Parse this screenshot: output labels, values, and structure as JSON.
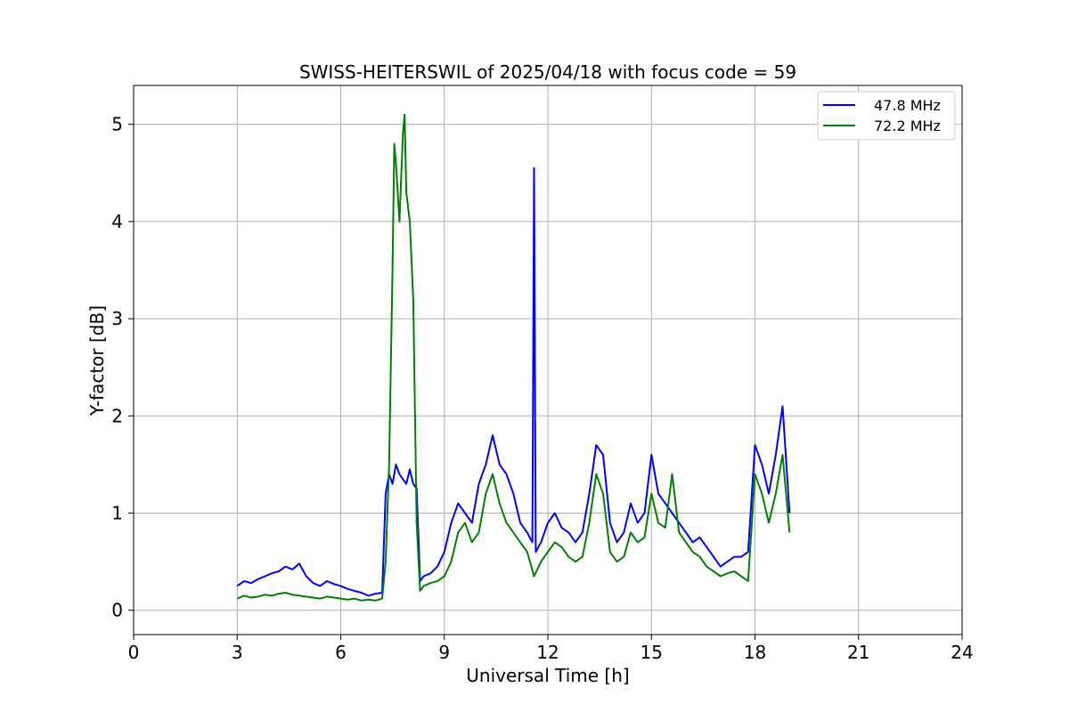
{
  "chart_data": {
    "type": "line",
    "title": "SWISS-HEITERSWIL of 2025/04/18 with focus code = 59",
    "xlabel": "Universal Time [h]",
    "ylabel": "Y-factor [dB]",
    "xlim": [
      0,
      24
    ],
    "ylim": [
      -0.25,
      5.4
    ],
    "xticks": [
      0,
      3,
      6,
      9,
      12,
      15,
      18,
      21,
      24
    ],
    "yticks": [
      0,
      1,
      2,
      3,
      4,
      5
    ],
    "grid": true,
    "legend_position": "top-right",
    "series": [
      {
        "name": "47.8 MHz",
        "color": "#0000ff",
        "x": [
          3.0,
          3.2,
          3.4,
          3.6,
          3.8,
          4.0,
          4.2,
          4.4,
          4.6,
          4.8,
          5.0,
          5.2,
          5.4,
          5.6,
          5.8,
          6.0,
          6.2,
          6.4,
          6.6,
          6.8,
          7.0,
          7.2,
          7.3,
          7.4,
          7.5,
          7.6,
          7.7,
          7.8,
          7.9,
          8.0,
          8.1,
          8.2,
          8.3,
          8.4,
          8.6,
          8.8,
          9.0,
          9.2,
          9.4,
          9.6,
          9.8,
          10.0,
          10.2,
          10.4,
          10.6,
          10.8,
          11.0,
          11.2,
          11.4,
          11.55,
          11.6,
          11.65,
          11.8,
          12.0,
          12.2,
          12.4,
          12.6,
          12.8,
          13.0,
          13.2,
          13.4,
          13.6,
          13.8,
          14.0,
          14.2,
          14.4,
          14.6,
          14.8,
          15.0,
          15.2,
          15.4,
          15.6,
          15.8,
          16.0,
          16.2,
          16.4,
          16.6,
          16.8,
          17.0,
          17.2,
          17.4,
          17.6,
          17.8,
          18.0,
          18.2,
          18.4,
          18.6,
          18.8,
          19.0
        ],
        "values": [
          0.25,
          0.3,
          0.28,
          0.32,
          0.35,
          0.38,
          0.4,
          0.45,
          0.42,
          0.48,
          0.35,
          0.28,
          0.25,
          0.3,
          0.27,
          0.25,
          0.22,
          0.2,
          0.18,
          0.15,
          0.17,
          0.18,
          1.2,
          1.4,
          1.3,
          1.5,
          1.4,
          1.35,
          1.3,
          1.45,
          1.3,
          1.25,
          0.3,
          0.35,
          0.38,
          0.45,
          0.6,
          0.9,
          1.1,
          1.0,
          0.9,
          1.3,
          1.5,
          1.8,
          1.5,
          1.4,
          1.2,
          0.9,
          0.8,
          0.7,
          4.55,
          0.6,
          0.7,
          0.9,
          1.0,
          0.85,
          0.8,
          0.7,
          0.8,
          1.2,
          1.7,
          1.6,
          0.9,
          0.7,
          0.8,
          1.1,
          0.9,
          1.0,
          1.6,
          1.2,
          1.1,
          1.0,
          0.9,
          0.8,
          0.7,
          0.75,
          0.65,
          0.55,
          0.45,
          0.5,
          0.55,
          0.55,
          0.6,
          1.7,
          1.5,
          1.2,
          1.6,
          2.1,
          1.0
        ]
      },
      {
        "name": "72.2 MHz",
        "color": "#008000",
        "x": [
          3.0,
          3.2,
          3.4,
          3.6,
          3.8,
          4.0,
          4.2,
          4.4,
          4.6,
          4.8,
          5.0,
          5.2,
          5.4,
          5.6,
          5.8,
          6.0,
          6.2,
          6.4,
          6.6,
          6.8,
          7.0,
          7.2,
          7.3,
          7.4,
          7.5,
          7.55,
          7.6,
          7.7,
          7.8,
          7.85,
          7.9,
          8.0,
          8.1,
          8.2,
          8.3,
          8.4,
          8.6,
          8.8,
          9.0,
          9.2,
          9.4,
          9.6,
          9.8,
          10.0,
          10.2,
          10.4,
          10.6,
          10.8,
          11.0,
          11.2,
          11.4,
          11.6,
          11.8,
          12.0,
          12.2,
          12.4,
          12.6,
          12.8,
          13.0,
          13.2,
          13.4,
          13.6,
          13.8,
          14.0,
          14.2,
          14.4,
          14.6,
          14.8,
          15.0,
          15.2,
          15.4,
          15.6,
          15.8,
          16.0,
          16.2,
          16.4,
          16.6,
          16.8,
          17.0,
          17.2,
          17.4,
          17.6,
          17.8,
          18.0,
          18.2,
          18.4,
          18.6,
          18.8,
          19.0
        ],
        "values": [
          0.12,
          0.15,
          0.13,
          0.14,
          0.16,
          0.15,
          0.17,
          0.18,
          0.16,
          0.15,
          0.14,
          0.13,
          0.12,
          0.14,
          0.13,
          0.12,
          0.11,
          0.12,
          0.1,
          0.11,
          0.1,
          0.12,
          0.5,
          1.5,
          3.5,
          4.8,
          4.6,
          4.0,
          4.9,
          5.1,
          4.3,
          4.0,
          3.2,
          0.9,
          0.2,
          0.25,
          0.28,
          0.3,
          0.35,
          0.5,
          0.8,
          0.9,
          0.7,
          0.8,
          1.2,
          1.4,
          1.1,
          0.9,
          0.8,
          0.7,
          0.6,
          0.35,
          0.5,
          0.6,
          0.7,
          0.65,
          0.55,
          0.5,
          0.55,
          0.9,
          1.4,
          1.2,
          0.6,
          0.5,
          0.55,
          0.8,
          0.7,
          0.75,
          1.2,
          0.9,
          0.85,
          1.4,
          0.8,
          0.7,
          0.6,
          0.55,
          0.45,
          0.4,
          0.35,
          0.38,
          0.4,
          0.35,
          0.3,
          1.4,
          1.2,
          0.9,
          1.2,
          1.6,
          0.8
        ]
      }
    ]
  }
}
